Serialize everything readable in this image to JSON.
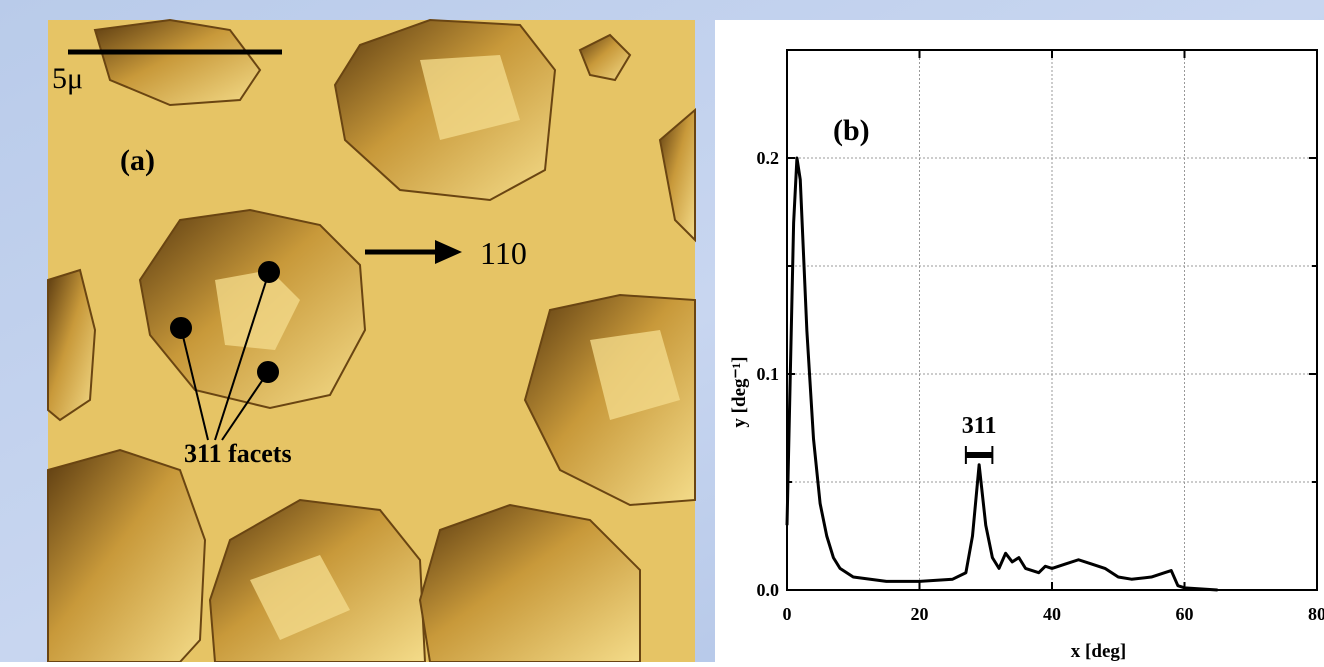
{
  "panel_a": {
    "scale_bar": "5μ",
    "label": "(a)",
    "direction": "110",
    "facet_label": "311 facets"
  },
  "chart_data": {
    "type": "line",
    "panel_label": "(b)",
    "x_label": "x [deg]",
    "y_label": "y [deg⁻¹]",
    "x": [
      0,
      0.5,
      1,
      1.5,
      2,
      3,
      4,
      5,
      6,
      7,
      8,
      10,
      15,
      20,
      25,
      27,
      28,
      29,
      30,
      31,
      32,
      33,
      34,
      35,
      36,
      38,
      39,
      40,
      42,
      44,
      46,
      48,
      50,
      52,
      55,
      57,
      58,
      59,
      60,
      65
    ],
    "values": [
      0.03,
      0.1,
      0.17,
      0.2,
      0.19,
      0.12,
      0.07,
      0.04,
      0.025,
      0.015,
      0.01,
      0.006,
      0.004,
      0.004,
      0.005,
      0.008,
      0.025,
      0.058,
      0.03,
      0.015,
      0.01,
      0.017,
      0.013,
      0.015,
      0.01,
      0.008,
      0.011,
      0.01,
      0.012,
      0.014,
      0.012,
      0.01,
      0.006,
      0.005,
      0.006,
      0.008,
      0.009,
      0.002,
      0.001,
      0
    ],
    "color": "#000000",
    "xlim": [
      0,
      80
    ],
    "xticks": [
      0,
      20,
      40,
      60,
      80
    ],
    "ylim": [
      0,
      0.25
    ],
    "yticks": [
      {
        "value": 0,
        "label": "0.0"
      },
      0.1,
      0.2
    ],
    "y_grid_ticks": [
      0.05,
      0.15
    ],
    "grid": true,
    "annotations": [
      {
        "text": "311",
        "x": 29,
        "y": 0.0625,
        "xmin": 27,
        "xmax": 31
      }
    ]
  }
}
